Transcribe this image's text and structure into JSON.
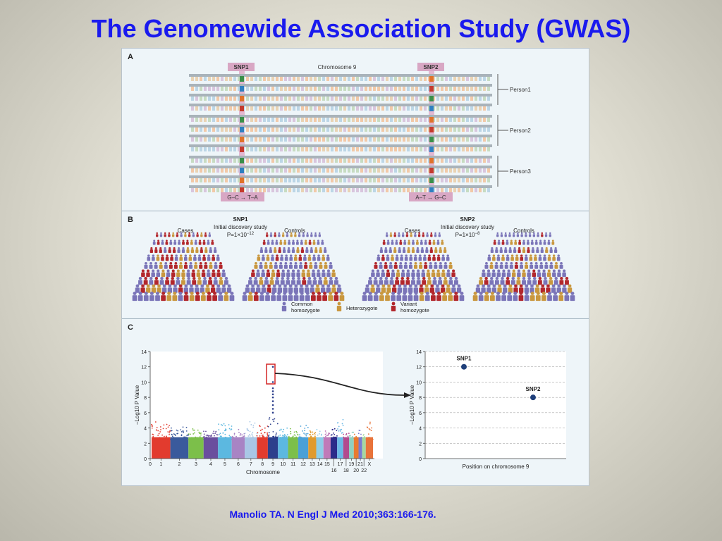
{
  "slide": {
    "title": "The Genomewide Association Study (GWAS)",
    "citation": "Manolio TA. N Engl J Med 2010;363:166-176."
  },
  "panel_a": {
    "letter": "A",
    "snp1_label": "SNP1",
    "snp2_label": "SNP2",
    "chromosome_label": "Chromosome 9",
    "persons": [
      "Person1",
      "Person2",
      "Person3"
    ],
    "snp1_change": "G–C → T–A",
    "snp2_change": "A–T → G–C"
  },
  "panel_b": {
    "letter": "B",
    "groups": [
      {
        "snp": "SNP1",
        "study": "Initial discovery study",
        "p_base": "P=1×10",
        "p_exp": "−12",
        "cases": "Cases",
        "controls": "Controls"
      },
      {
        "snp": "SNP2",
        "study": "Initial discovery study",
        "p_base": "P=1×10",
        "p_exp": "−8",
        "cases": "Cases",
        "controls": "Controls"
      }
    ],
    "legend": [
      {
        "line1": "Common",
        "line2": "homozygote",
        "color": "#7a74b8"
      },
      {
        "line1": "Heterozygote",
        "line2": "",
        "color": "#c9973e"
      },
      {
        "line1": "Variant",
        "line2": "homozygote",
        "color": "#b2262b"
      }
    ]
  },
  "panel_c": {
    "letter": "C",
    "manhattan": {
      "y_ticks": [
        "0",
        "2",
        "4",
        "6",
        "8",
        "10",
        "12",
        "14"
      ],
      "y_label": "−Log10 P Value",
      "x_label": "Chromosome",
      "x_ticks_top": [
        "0",
        "1",
        "2",
        "3",
        "4",
        "5",
        "6",
        "7",
        "8",
        "9",
        "10",
        "11",
        "12",
        "13",
        "14",
        "15",
        "17",
        "19",
        "21",
        "X"
      ],
      "x_ticks_bottom": [
        "16",
        "18",
        "20",
        "22"
      ]
    },
    "zoom": {
      "y_ticks": [
        "0",
        "2",
        "4",
        "6",
        "8",
        "10",
        "12",
        "14"
      ],
      "y_label": "−Log10 P Value",
      "x_label": "Position on chromosome 9",
      "points": [
        {
          "name": "SNP1",
          "y": 12
        },
        {
          "name": "SNP2",
          "y": 8
        }
      ]
    }
  },
  "chart_data": [
    {
      "type": "scatter",
      "title": "",
      "xlabel": "Chromosome",
      "ylabel": "−Log10 P Value",
      "ylim": [
        0,
        14
      ],
      "categories": [
        "1",
        "2",
        "3",
        "4",
        "5",
        "6",
        "7",
        "8",
        "9",
        "10",
        "11",
        "12",
        "13",
        "14",
        "15",
        "16",
        "17",
        "18",
        "19",
        "20",
        "21",
        "22",
        "X"
      ],
      "series": [
        {
          "values": [
            4.8,
            4.3,
            3.9,
            3.6,
            4.7,
            3.8,
            4.9,
            4.5,
            12,
            4.2,
            4.1,
            4.4,
            3.8,
            3.9,
            3.7,
            4.4,
            5.2,
            3.6,
            3.5,
            3.4,
            3.9,
            3.3,
            5.1
          ]
        }
      ]
    },
    {
      "type": "scatter",
      "title": "",
      "xlabel": "Position on chromosome 9",
      "ylabel": "−Log10 P Value",
      "ylim": [
        0,
        14
      ],
      "series": [
        {
          "name": "SNP1",
          "x": [
            1
          ],
          "y": [
            12
          ]
        },
        {
          "name": "SNP2",
          "x": [
            2
          ],
          "y": [
            8
          ]
        }
      ]
    }
  ]
}
